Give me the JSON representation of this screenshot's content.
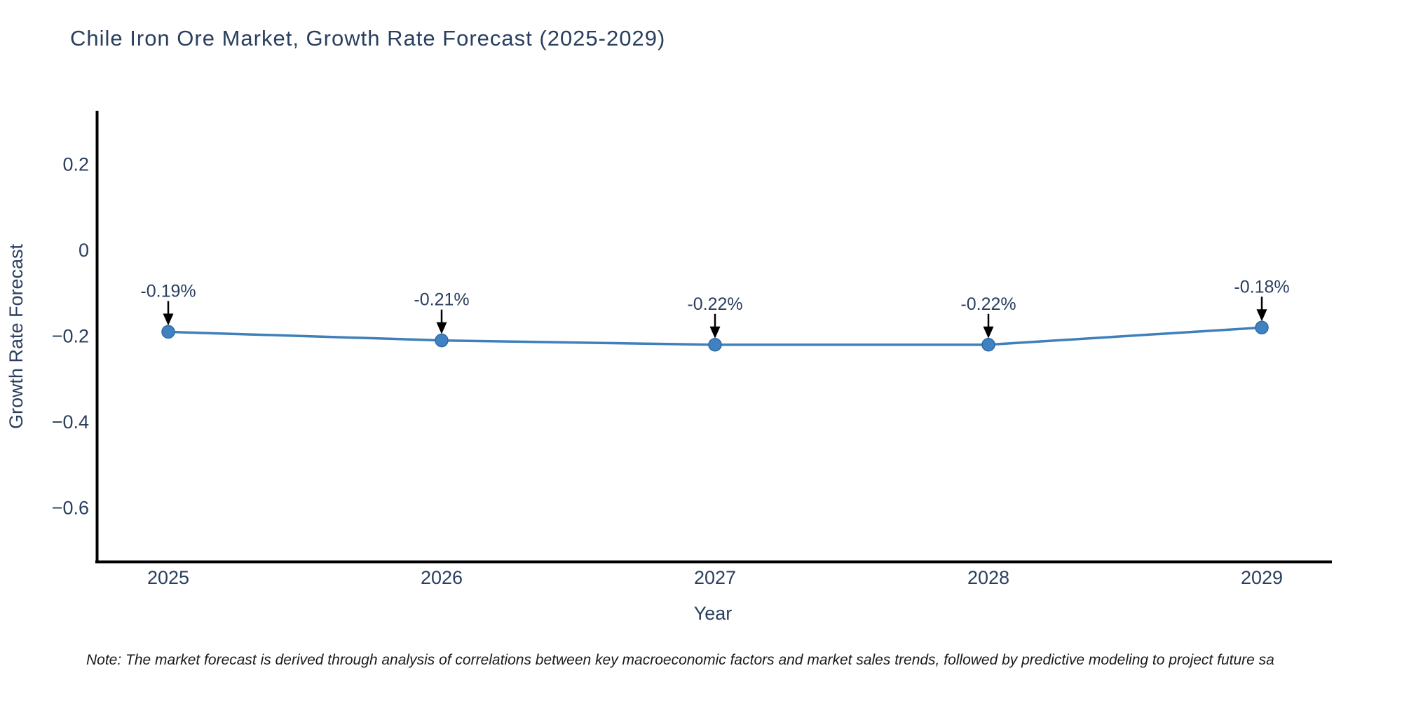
{
  "title": "Chile Iron Ore Market, Growth Rate Forecast (2025-2029)",
  "note": "Note: The market forecast is derived through analysis of correlations between key macroeconomic factors and market sales trends, followed by predictive modeling to project future sa",
  "chart_data": {
    "type": "line",
    "title": "Chile Iron Ore Market, Growth Rate Forecast (2025-2029)",
    "x": [
      2025,
      2026,
      2027,
      2028,
      2029
    ],
    "x_tick_labels": [
      "2025",
      "2026",
      "2027",
      "2028",
      "2029"
    ],
    "series": [
      {
        "name": "Growth Rate Forecast",
        "values": [
          -0.19,
          -0.21,
          -0.22,
          -0.22,
          -0.18
        ],
        "point_labels": [
          "-0.19%",
          "-0.21%",
          "-0.22%",
          "-0.22%",
          "-0.18%"
        ]
      }
    ],
    "xlabel": "Year",
    "ylabel": "Growth Rate Forecast",
    "yticks": [
      0.2,
      0,
      -0.2,
      -0.4,
      -0.6
    ],
    "ytick_labels": [
      "0.2",
      "0",
      "−0.2",
      "−0.4",
      "−0.6"
    ],
    "ylim": [
      -0.725,
      0.325
    ],
    "xlim": [
      2024.73,
      2029.26
    ],
    "grid": "off",
    "legend": "none",
    "colors": {
      "line": "#3f7fba",
      "marker_fill": "#3f81c1",
      "marker_edge": "#2d6aa3",
      "axis": "#000000",
      "text": "#2a3f5f",
      "annotation_text": "#2a3f5f",
      "arrow": "#000000",
      "note_text": "#1a1a1a"
    }
  }
}
